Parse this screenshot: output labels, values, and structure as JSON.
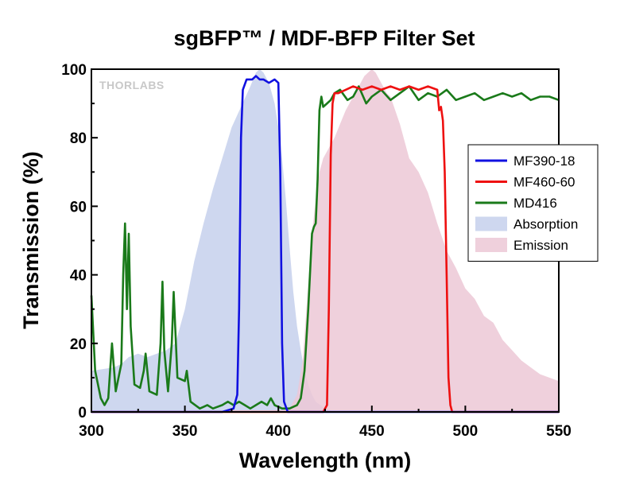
{
  "chart_data": {
    "type": "line",
    "title": "sgBFP™ / MDF-BFP Filter Set",
    "xlabel": "Wavelength (nm)",
    "ylabel": "Transmission (%)",
    "xlim": [
      300,
      550
    ],
    "ylim": [
      0,
      100
    ],
    "xticks": [
      300,
      350,
      400,
      450,
      500,
      550
    ],
    "yticks": [
      0,
      20,
      40,
      60,
      80,
      100
    ],
    "watermark": "THORLABS",
    "grid": false,
    "legend_position": "right",
    "series": [
      {
        "name": "MF390-18",
        "style": "line",
        "color": "#1010e0",
        "x": [
          300,
          370,
          376,
          378,
          379,
          380,
          381,
          383,
          386,
          388,
          390,
          392,
          395,
          398,
          400,
          401,
          402,
          403,
          405,
          550
        ],
        "y": [
          0,
          0,
          1,
          5,
          30,
          80,
          94,
          97,
          97,
          98,
          97,
          97,
          96,
          97,
          96,
          70,
          20,
          3,
          0,
          0
        ]
      },
      {
        "name": "MF460-60",
        "style": "line",
        "color": "#ee1010",
        "x": [
          300,
          424,
          426,
          427,
          428,
          429,
          430,
          432,
          436,
          440,
          445,
          450,
          455,
          460,
          465,
          470,
          475,
          480,
          485,
          486,
          487,
          488,
          489,
          490,
          491,
          492,
          493,
          550
        ],
        "y": [
          0,
          0,
          2,
          30,
          75,
          90,
          93,
          93,
          94,
          95,
          94,
          95,
          94,
          95,
          94,
          95,
          94,
          95,
          94,
          88,
          89,
          85,
          70,
          40,
          10,
          2,
          0,
          0
        ]
      },
      {
        "name": "MD416",
        "style": "line",
        "color": "#1a7a1a",
        "x": [
          300,
          302,
          305,
          307,
          309,
          310,
          311,
          313,
          316,
          317,
          318,
          319,
          320,
          321,
          323,
          326,
          328,
          329,
          331,
          335,
          337,
          338,
          339,
          341,
          343,
          344,
          346,
          350,
          351,
          353,
          358,
          362,
          365,
          370,
          373,
          376,
          379,
          382,
          385,
          388,
          391,
          394,
          396,
          398,
          402,
          406,
          410,
          412,
          414,
          416,
          418,
          419,
          420,
          421,
          422,
          423,
          424,
          426,
          428,
          430,
          433,
          437,
          440,
          443,
          447,
          450,
          455,
          460,
          465,
          470,
          475,
          480,
          485,
          490,
          495,
          500,
          505,
          510,
          515,
          520,
          525,
          530,
          535,
          540,
          545,
          550
        ],
        "y": [
          34,
          12,
          4,
          2,
          4,
          12,
          20,
          6,
          14,
          40,
          55,
          30,
          52,
          25,
          8,
          7,
          12,
          17,
          6,
          5,
          20,
          38,
          18,
          6,
          20,
          35,
          10,
          9,
          12,
          3,
          1,
          2,
          1,
          2,
          3,
          2,
          3,
          2,
          1,
          2,
          3,
          2,
          4,
          2,
          1,
          1,
          2,
          4,
          12,
          30,
          52,
          54,
          55,
          68,
          88,
          92,
          89,
          90,
          91,
          93,
          94,
          91,
          92,
          95,
          90,
          92,
          94,
          91,
          93,
          95,
          91,
          93,
          92,
          94,
          91,
          92,
          93,
          91,
          92,
          93,
          92,
          93,
          91,
          92,
          92,
          91
        ]
      },
      {
        "name": "Absorption",
        "style": "area",
        "color": "#c6d0ec",
        "x": [
          300,
          312,
          316,
          320,
          325,
          330,
          335,
          340,
          345,
          350,
          355,
          360,
          365,
          370,
          375,
          380,
          385,
          388,
          390,
          392,
          395,
          398,
          400,
          402,
          404,
          406,
          408,
          410,
          412,
          414,
          416,
          418,
          420,
          425,
          430
        ],
        "y": [
          12,
          13,
          14,
          16,
          17,
          16,
          17,
          18,
          20,
          30,
          44,
          55,
          65,
          74,
          83,
          89,
          95,
          99,
          100,
          99,
          96,
          90,
          83,
          74,
          62,
          48,
          35,
          25,
          18,
          12,
          8,
          5,
          3,
          1,
          0
        ]
      },
      {
        "name": "Emission",
        "style": "area",
        "color": "#ecc8d6",
        "x": [
          405,
          410,
          413,
          415,
          418,
          420,
          422,
          424,
          426,
          428,
          430,
          433,
          436,
          440,
          443,
          446,
          448,
          450,
          452,
          455,
          458,
          460,
          465,
          470,
          475,
          480,
          485,
          490,
          495,
          500,
          505,
          510,
          515,
          520,
          525,
          530,
          535,
          540,
          545,
          550
        ],
        "y": [
          0,
          5,
          15,
          30,
          52,
          62,
          70,
          74,
          76,
          78,
          80,
          84,
          88,
          92,
          95,
          98,
          99,
          100,
          99,
          96,
          93,
          92,
          84,
          74,
          70,
          64,
          55,
          47,
          42,
          36,
          33,
          28,
          26,
          21,
          18,
          15,
          13,
          11,
          10,
          9
        ]
      }
    ]
  }
}
